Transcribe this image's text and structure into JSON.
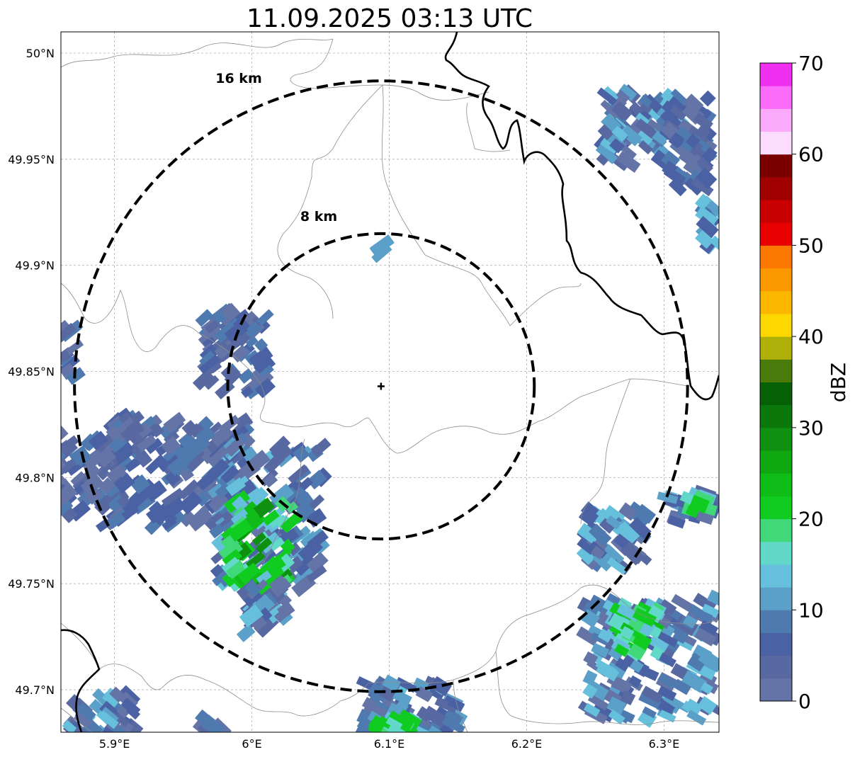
{
  "title": "11.09.2025 03:13 UTC",
  "map": {
    "lon_ticks": [
      {
        "value": 5.9,
        "label": "5.9°E"
      },
      {
        "value": 6.0,
        "label": "6°E"
      },
      {
        "value": 6.1,
        "label": "6.1°E"
      },
      {
        "value": 6.2,
        "label": "6.2°E"
      },
      {
        "value": 6.3,
        "label": "6.3°E"
      }
    ],
    "lat_ticks": [
      {
        "value": 50.0,
        "label": "50°N"
      },
      {
        "value": 49.95,
        "label": "49.95°N"
      },
      {
        "value": 49.9,
        "label": "49.9°N"
      },
      {
        "value": 49.85,
        "label": "49.85°N"
      },
      {
        "value": 49.8,
        "label": "49.8°N"
      },
      {
        "value": 49.75,
        "label": "49.75°N"
      },
      {
        "value": 49.7,
        "label": "49.7°N"
      }
    ],
    "lon_range": [
      5.861,
      6.34
    ],
    "lat_range": [
      49.68,
      50.01
    ],
    "radar_site": {
      "lon": 6.094,
      "lat": 49.843
    },
    "rings": [
      {
        "radius_km": 8,
        "label": "8 km"
      },
      {
        "radius_km": 16,
        "label": "16 km"
      }
    ],
    "gridlines": true
  },
  "colorbar": {
    "label": "dBZ",
    "range": [
      0,
      70
    ],
    "ticks": [
      "0",
      "10",
      "20",
      "30",
      "40",
      "50",
      "60",
      "70"
    ],
    "colors": [
      "#6474a6",
      "#5868a0",
      "#4a62a4",
      "#4f7ab0",
      "#5aa0c8",
      "#66c0dc",
      "#62d8c8",
      "#40d878",
      "#10cc20",
      "#10bc18",
      "#10a810",
      "#109010",
      "#0a780a",
      "#066006",
      "#4a7a0a",
      "#b0b00a",
      "#fcd800",
      "#fcb800",
      "#fc9800",
      "#fc7800",
      "#e80000",
      "#c80000",
      "#a00000",
      "#7a0000",
      "#fcdcfc",
      "#fcaafc",
      "#fc6cfc",
      "#f030f0"
    ]
  }
}
